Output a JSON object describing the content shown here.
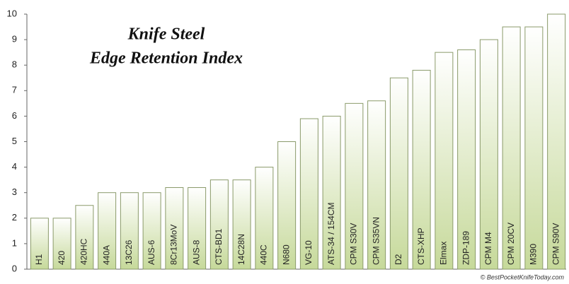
{
  "chart_data": {
    "type": "bar",
    "title_lines": [
      "Knife Steel",
      "Edge Retention Index"
    ],
    "source": "© BestPocketKnifeToday.com",
    "categories": [
      "H1",
      "420",
      "420HC",
      "440A",
      "13C26",
      "AUS-6",
      "8Cr13MoV",
      "AUS-8",
      "CTS-BD1",
      "14C28N",
      "440C",
      "N680",
      "VG-10",
      "ATS-34 / 154CM",
      "CPM S30V",
      "CPM S35VN",
      "D2",
      "CTS-XHP",
      "Elmax",
      "ZDP-189",
      "CPM M4",
      "CPM 20CV",
      "M390",
      "CPM S90V"
    ],
    "values": [
      2,
      2,
      2.5,
      3,
      3,
      3,
      3.2,
      3.2,
      3.5,
      3.5,
      4,
      5,
      5.9,
      6,
      6.5,
      6.6,
      7.5,
      7.8,
      8.5,
      8.6,
      9,
      9.5,
      9.5,
      10
    ],
    "color": "#c6d99a",
    "ylim": [
      0,
      10
    ],
    "yticks": [
      0,
      1,
      2,
      3,
      4,
      5,
      6,
      7,
      8,
      9,
      10
    ],
    "grid": false
  }
}
